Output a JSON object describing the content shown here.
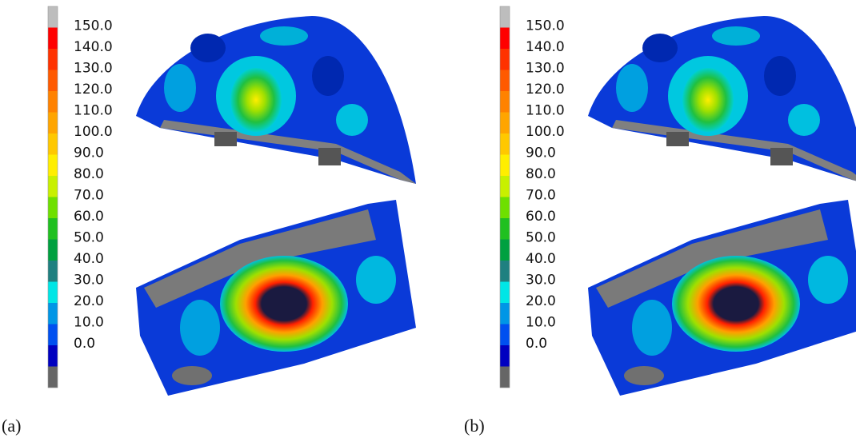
{
  "panels": [
    {
      "label": "(a)",
      "scale_labels": [
        "150.0",
        "140.0",
        "130.0",
        "120.0",
        "110.0",
        "100.0",
        "90.0",
        "80.0",
        "70.0",
        "60.0",
        "50.0",
        "40.0",
        "30.0",
        "20.0",
        "10.0",
        "0.0"
      ]
    },
    {
      "label": "(b)",
      "scale_labels": [
        "150.0",
        "140.0",
        "130.0",
        "120.0",
        "110.0",
        "100.0",
        "90.0",
        "80.0",
        "70.0",
        "60.0",
        "50.0",
        "40.0",
        "30.0",
        "20.0",
        "10.0",
        "0.0"
      ]
    }
  ],
  "scale_colors": [
    "#bdbdbd",
    "#ff0000",
    "#ff3200",
    "#ff5a00",
    "#ff8200",
    "#ffa500",
    "#ffc800",
    "#ffee00",
    "#c8f000",
    "#6ee000",
    "#20c020",
    "#00a040",
    "#1f8080",
    "#00e6e6",
    "#0096e6",
    "#0050f0",
    "#0000c0",
    "#666666"
  ]
}
